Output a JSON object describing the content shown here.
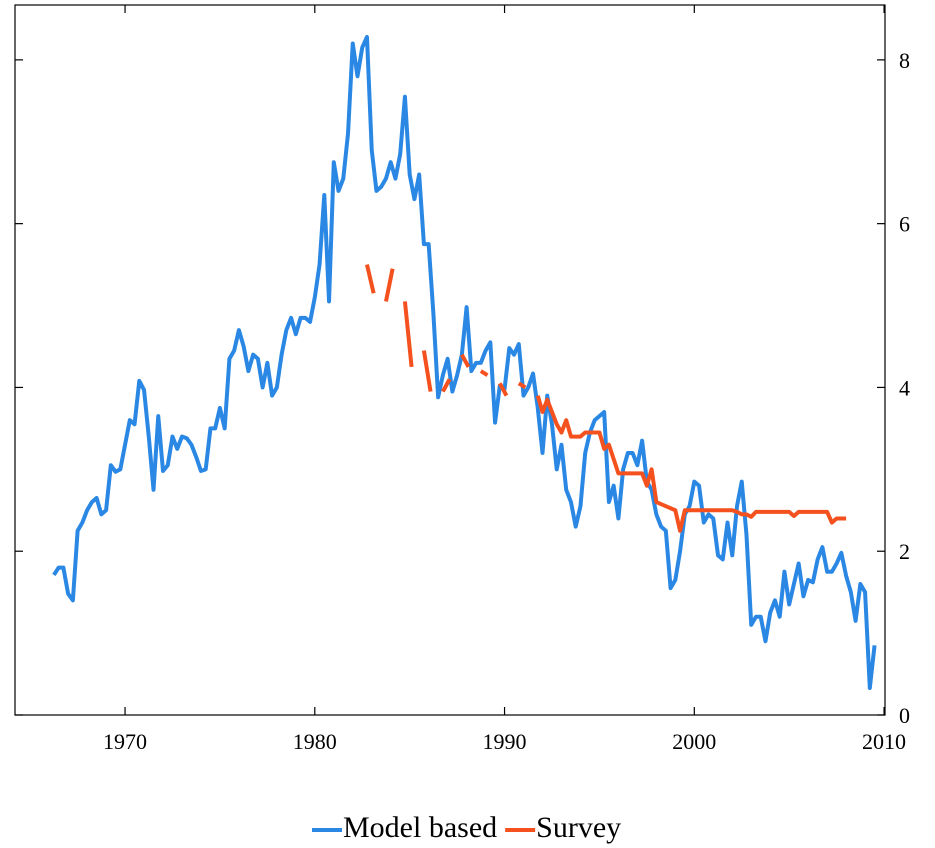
{
  "chart_data": {
    "type": "line",
    "xlim": [
      1964.2,
      2010.05
    ],
    "ylim": [
      0,
      8.67
    ],
    "xticks": [
      1970,
      1980,
      1990,
      2000,
      2010
    ],
    "yticks": [
      0,
      2,
      4,
      6,
      8
    ],
    "legend": "bottom",
    "series": [
      {
        "name": "Model based",
        "color": "#2a88e4",
        "x": [
          1966.25,
          1966.5,
          1966.75,
          1967,
          1967.25,
          1967.5,
          1967.75,
          1968,
          1968.25,
          1968.5,
          1968.75,
          1969,
          1969.25,
          1969.5,
          1969.75,
          1970,
          1970.25,
          1970.5,
          1970.75,
          1971,
          1971.25,
          1971.5,
          1971.75,
          1972,
          1972.25,
          1972.5,
          1972.75,
          1973,
          1973.25,
          1973.5,
          1973.75,
          1974,
          1974.25,
          1974.5,
          1974.75,
          1975,
          1975.25,
          1975.5,
          1975.75,
          1976,
          1976.25,
          1976.5,
          1976.75,
          1977,
          1977.25,
          1977.5,
          1977.75,
          1978,
          1978.25,
          1978.5,
          1978.75,
          1979,
          1979.25,
          1979.5,
          1979.75,
          1980,
          1980.25,
          1980.5,
          1980.75,
          1981,
          1981.25,
          1981.5,
          1981.75,
          1982,
          1982.25,
          1982.5,
          1982.75,
          1983,
          1983.25,
          1983.5,
          1983.75,
          1984,
          1984.25,
          1984.5,
          1984.75,
          1985,
          1985.25,
          1985.5,
          1985.75,
          1986,
          1986.25,
          1986.5,
          1986.75,
          1987,
          1987.25,
          1987.5,
          1987.75,
          1988,
          1988.25,
          1988.5,
          1988.75,
          1989,
          1989.25,
          1989.5,
          1989.75,
          1990,
          1990.25,
          1990.5,
          1990.75,
          1991,
          1991.25,
          1991.5,
          1991.75,
          1992,
          1992.25,
          1992.5,
          1992.75,
          1993,
          1993.25,
          1993.5,
          1993.75,
          1994,
          1994.25,
          1994.5,
          1994.75,
          1995,
          1995.25,
          1995.5,
          1995.75,
          1996,
          1996.25,
          1996.5,
          1996.75,
          1997,
          1997.25,
          1997.5,
          1997.75,
          1998,
          1998.25,
          1998.5,
          1998.75,
          1999,
          1999.25,
          1999.5,
          1999.75,
          2000,
          2000.25,
          2000.5,
          2000.75,
          2001,
          2001.25,
          2001.5,
          2001.75,
          2002,
          2002.25,
          2002.5,
          2002.75,
          2003,
          2003.25,
          2003.5,
          2003.75,
          2004,
          2004.25,
          2004.5,
          2004.75,
          2005,
          2005.25,
          2005.5,
          2005.75,
          2006,
          2006.25,
          2006.5,
          2006.75,
          2007,
          2007.25,
          2007.5,
          2007.75,
          2008,
          2008.25,
          2008.5,
          2008.75,
          2009,
          2009.25,
          2009.5
        ],
        "values": [
          1.71,
          1.8,
          1.8,
          1.48,
          1.4,
          2.25,
          2.35,
          2.5,
          2.6,
          2.65,
          2.45,
          2.5,
          3.05,
          2.97,
          3.0,
          3.3,
          3.6,
          3.55,
          4.08,
          3.97,
          3.4,
          2.75,
          3.65,
          2.98,
          3.05,
          3.4,
          3.25,
          3.4,
          3.38,
          3.3,
          3.15,
          2.98,
          3.0,
          3.5,
          3.5,
          3.75,
          3.5,
          4.35,
          4.45,
          4.7,
          4.5,
          4.2,
          4.4,
          4.35,
          4.0,
          4.3,
          3.9,
          4.0,
          4.4,
          4.7,
          4.85,
          4.65,
          4.85,
          4.85,
          4.8,
          5.1,
          5.5,
          6.35,
          5.05,
          6.75,
          6.4,
          6.55,
          7.1,
          8.2,
          7.8,
          8.15,
          8.28,
          6.9,
          6.4,
          6.45,
          6.55,
          6.75,
          6.55,
          6.85,
          7.55,
          6.6,
          6.3,
          6.6,
          5.75,
          5.75,
          4.9,
          3.88,
          4.15,
          4.35,
          3.95,
          4.15,
          4.4,
          4.98,
          4.2,
          4.3,
          4.3,
          4.45,
          4.55,
          3.57,
          4.02,
          3.98,
          4.48,
          4.4,
          4.53,
          3.9,
          4.0,
          4.17,
          3.75,
          3.2,
          3.9,
          3.55,
          3.0,
          3.3,
          2.75,
          2.6,
          2.3,
          2.55,
          3.2,
          3.45,
          3.6,
          3.65,
          3.7,
          2.6,
          2.8,
          2.4,
          3.0,
          3.2,
          3.2,
          3.05,
          3.35,
          2.85,
          2.75,
          2.45,
          2.3,
          2.25,
          1.55,
          1.65,
          2.0,
          2.45,
          2.55,
          2.85,
          2.8,
          2.35,
          2.45,
          2.4,
          1.95,
          1.9,
          2.35,
          1.95,
          2.55,
          2.85,
          2.2,
          1.1,
          1.2,
          1.2,
          0.9,
          1.25,
          1.4,
          1.2,
          1.75,
          1.35,
          1.6,
          1.85,
          1.45,
          1.65,
          1.62,
          1.9,
          2.05,
          1.75,
          1.75,
          1.85,
          1.98,
          1.7,
          1.5,
          1.15,
          1.6,
          1.5,
          0.33,
          0.85
        ]
      },
      {
        "name": "Survey",
        "color": "#f4511e",
        "x": [
          1982.75,
          1983.1,
          1983.4,
          1983.75,
          1984.1,
          1984.4,
          1984.75,
          1985.1,
          1985.4,
          1985.75,
          1986.1,
          1986.4,
          1986.75,
          1987.1,
          1987.4,
          1987.75,
          1988.1,
          1988.4,
          1988.75,
          1989.1,
          1989.4,
          1989.75,
          1990.1,
          1990.4,
          1990.75,
          1991.1,
          1991.4,
          1991.75,
          1992,
          1992.25,
          1992.5,
          1992.75,
          1993,
          1993.25,
          1993.5,
          1994,
          1994.25,
          1995,
          1995.25,
          1995.5,
          1996,
          1997,
          1997.25,
          1997.5,
          1997.75,
          1998,
          1998.5,
          1999,
          1999.25,
          1999.5,
          2002,
          2002.25,
          2002.5,
          2002.75,
          2003,
          2003.25,
          2005,
          2005.25,
          2005.5,
          2007,
          2007.25,
          2007.5,
          2008
        ],
        "values": [
          5.5,
          5.15,
          null,
          5.05,
          5.45,
          null,
          5.05,
          4.25,
          null,
          4.45,
          3.95,
          null,
          3.95,
          4.1,
          null,
          4.4,
          4.25,
          null,
          4.2,
          4.15,
          null,
          4.05,
          3.9,
          null,
          4.05,
          4.0,
          null,
          3.9,
          3.7,
          3.85,
          3.7,
          3.55,
          3.45,
          3.6,
          3.4,
          3.4,
          3.45,
          3.45,
          3.25,
          3.3,
          2.95,
          2.95,
          2.95,
          2.8,
          3.0,
          2.6,
          2.55,
          2.5,
          2.25,
          2.5,
          2.5,
          2.48,
          2.45,
          2.45,
          2.42,
          2.48,
          2.48,
          2.43,
          2.48,
          2.48,
          2.35,
          2.4,
          2.4
        ]
      }
    ]
  }
}
